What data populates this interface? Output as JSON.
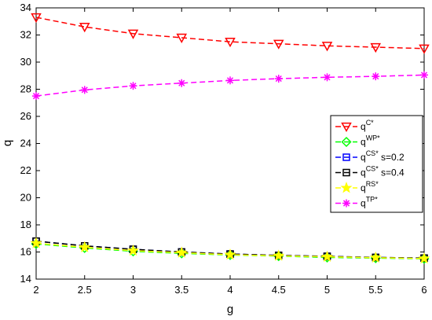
{
  "chart_data": {
    "type": "line",
    "title": "",
    "xlabel": "g",
    "ylabel": "q",
    "xlim": [
      2,
      6
    ],
    "ylim": [
      14,
      34
    ],
    "xticks": [
      "2",
      "2.5",
      "3",
      "3.5",
      "4",
      "4.5",
      "5",
      "5.5",
      "6"
    ],
    "yticks": [
      "14",
      "16",
      "18",
      "20",
      "22",
      "24",
      "26",
      "28",
      "30",
      "32",
      "34"
    ],
    "x": [
      2,
      2.5,
      3,
      3.5,
      4,
      4.5,
      5,
      5.5,
      6
    ],
    "legend_position": "right",
    "grid": false,
    "series": [
      {
        "name": "q",
        "sup": "C*",
        "suffix": "",
        "color": "#ff0000",
        "marker": "triangle-down",
        "values": [
          33.3,
          32.6,
          32.1,
          31.8,
          31.5,
          31.35,
          31.2,
          31.1,
          31.0
        ]
      },
      {
        "name": "q",
        "sup": "WP*",
        "suffix": "",
        "color": "#00ff00",
        "marker": "diamond",
        "values": [
          16.6,
          16.3,
          16.05,
          15.9,
          15.78,
          15.7,
          15.6,
          15.55,
          15.5
        ]
      },
      {
        "name": "q",
        "sup": "CS*",
        "suffix": " s=0.2",
        "color": "#0000ff",
        "marker": "square",
        "values": [
          16.8,
          16.45,
          16.2,
          16.0,
          15.85,
          15.75,
          15.68,
          15.6,
          15.55
        ]
      },
      {
        "name": "q",
        "sup": "CS*",
        "suffix": " s=0.4",
        "color": "#000000",
        "marker": "square",
        "values": [
          16.8,
          16.45,
          16.2,
          16.0,
          15.85,
          15.75,
          15.68,
          15.6,
          15.55
        ]
      },
      {
        "name": "q",
        "sup": "RS*",
        "suffix": "",
        "color": "#ffff00",
        "marker": "star",
        "values": [
          16.65,
          16.35,
          16.1,
          15.95,
          15.8,
          15.72,
          15.65,
          15.58,
          15.52
        ]
      },
      {
        "name": "q",
        "sup": "TP*",
        "suffix": "",
        "color": "#ff00ff",
        "marker": "asterisk",
        "values": [
          27.5,
          27.95,
          28.25,
          28.45,
          28.65,
          28.78,
          28.88,
          28.95,
          29.05
        ]
      }
    ]
  }
}
